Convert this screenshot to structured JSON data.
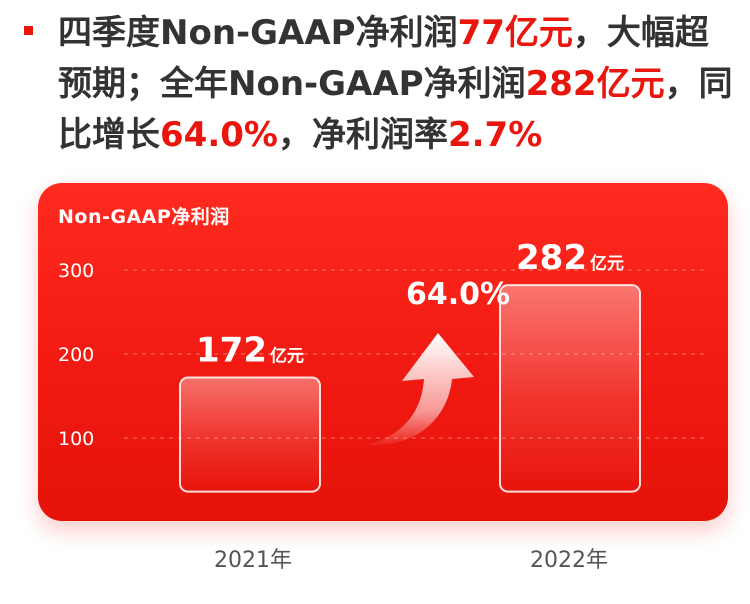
{
  "headline": {
    "seg1": "四季度Non-GAAP净利润",
    "seg2": "77亿元",
    "seg3": "，大幅超预期；全年Non-GAAP净利润",
    "seg4": "282亿元",
    "seg5": "，同比增长",
    "seg6": "64.0%",
    "seg7": "，净利润率",
    "seg8": "2.7%"
  },
  "chart_data": {
    "type": "bar",
    "title": "Non-GAAP净利润",
    "categories": [
      "2021年",
      "2022年"
    ],
    "values": [
      172,
      282
    ],
    "value_labels": [
      {
        "num": "172",
        "unit": "亿元"
      },
      {
        "num": "282",
        "unit": "亿元"
      }
    ],
    "yticks": [
      100,
      200,
      300
    ],
    "ylim": [
      60,
      340
    ],
    "grid": true,
    "annotation": {
      "label": "64.0%",
      "icon": "up-arrow-icon"
    },
    "colors": {
      "card": "#ef1a12",
      "accent": "#e8160c"
    }
  }
}
